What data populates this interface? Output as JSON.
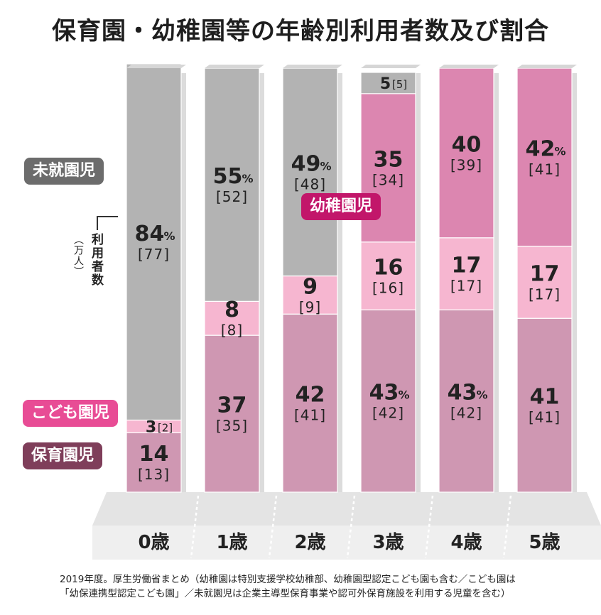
{
  "title": "保育園・幼稚園等の年齢別利用者数及び割合",
  "unit_label": "利用者数",
  "unit_sub": "（万人）",
  "tags": {
    "mishuen": "未就園児",
    "kodomoen": "こども園児",
    "hoikuen": "保育園児",
    "youchien": "幼稚園児"
  },
  "footnote": {
    "line1": "2019年度。厚生労働省まとめ（幼稚園は特別支援学校幼稚部、幼稚園型認定こども園も含む／こども園は",
    "line2": "「幼保連携型認定こども園」／未就園児は企業主導型保育事業や認可外保育施設を利用する児童を含む）"
  },
  "colors": {
    "mishuen": "#b3b3b3",
    "kodomoen": "#f6b6d0",
    "youchien": "#dc86b0",
    "hoikuen": "#cf97b2",
    "floor": "#e4e4e4"
  },
  "chart_data": {
    "type": "bar",
    "stacked": true,
    "orientation": "vertical",
    "categories": [
      "0歳",
      "1歳",
      "2歳",
      "3歳",
      "4歳",
      "5歳"
    ],
    "value_unit": "%",
    "count_unit": "万人",
    "series": [
      {
        "name": "保育園児",
        "values": [
          14,
          37,
          42,
          43,
          43,
          41
        ],
        "counts": [
          13,
          35,
          41,
          42,
          42,
          41
        ],
        "pct_shown": [
          false,
          false,
          false,
          true,
          true,
          false
        ]
      },
      {
        "name": "こども園児",
        "values": [
          3,
          8,
          9,
          16,
          17,
          17
        ],
        "counts": [
          2,
          8,
          9,
          16,
          17,
          17
        ],
        "pct_shown": [
          false,
          false,
          false,
          false,
          false,
          false
        ]
      },
      {
        "name": "幼稚園児",
        "values": [
          0,
          0,
          0,
          35,
          40,
          42
        ],
        "counts": [
          0,
          0,
          0,
          34,
          39,
          41
        ],
        "pct_shown": [
          false,
          false,
          false,
          false,
          false,
          true
        ]
      },
      {
        "name": "未就園児",
        "values": [
          84,
          55,
          49,
          5,
          0,
          0
        ],
        "counts": [
          77,
          52,
          48,
          5,
          0,
          0
        ],
        "pct_shown": [
          true,
          true,
          true,
          false,
          false,
          false
        ]
      }
    ],
    "ylim": [
      0,
      100
    ],
    "grid": false,
    "legend": "labels-left"
  }
}
